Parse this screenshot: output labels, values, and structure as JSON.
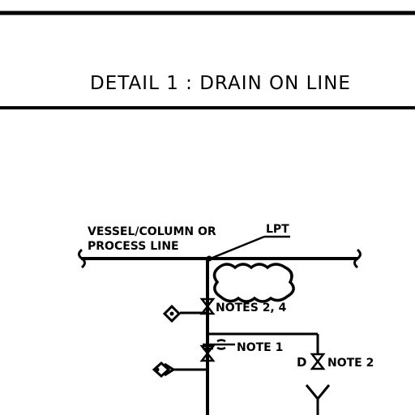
{
  "detail_title": "DETAIL 1 : DRAIN ON LINE",
  "labels": {
    "source_line_1": "VESSEL/COLUMN OR",
    "source_line_2": "PROCESS LINE",
    "lpt": "LPT",
    "notes_2_4": "NOTES 2, 4",
    "note_1": "NOTE 1",
    "drain_d": "D",
    "note_2": "NOTE 2"
  }
}
